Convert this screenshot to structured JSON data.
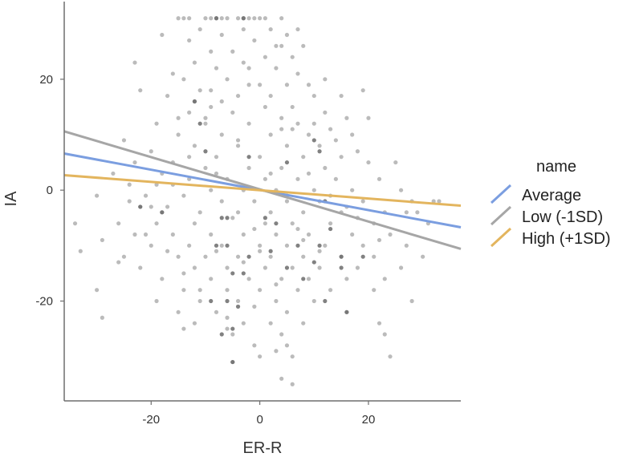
{
  "chart_data": {
    "type": "scatter",
    "title": "",
    "xlabel": "ER-R",
    "ylabel": "IA",
    "xlim": [
      -36,
      37
    ],
    "ylim": [
      -38,
      34
    ],
    "x_ticks": [
      -20,
      0,
      20
    ],
    "y_ticks": [
      -20,
      0,
      20
    ],
    "grid": false,
    "legend": {
      "title": "name",
      "position": "right",
      "entries": [
        {
          "label": "Average",
          "color": "#7b9ee0"
        },
        {
          "label": "Low (-1SD)",
          "color": "#a6a6a6"
        },
        {
          "label": "High (+1SD)",
          "color": "#e3b55e"
        }
      ]
    },
    "point_color": "#9e9e9e",
    "lines": [
      {
        "name": "Average",
        "color": "#7b9ee0",
        "x": [
          -36,
          37
        ],
        "y": [
          6.6,
          -6.7
        ]
      },
      {
        "name": "Low (-1SD)",
        "color": "#a6a6a6",
        "x": [
          -36,
          37
        ],
        "y": [
          10.6,
          -10.6
        ]
      },
      {
        "name": "High (+1SD)",
        "color": "#e3b55e",
        "x": [
          -36,
          37
        ],
        "y": [
          2.7,
          -2.8
        ]
      }
    ],
    "points": [
      [
        -15,
        31
      ],
      [
        -14,
        31
      ],
      [
        -13,
        31
      ],
      [
        -10,
        31
      ],
      [
        -9,
        31
      ],
      [
        -8,
        31
      ],
      [
        -7,
        31
      ],
      [
        -6,
        31
      ],
      [
        -4,
        31
      ],
      [
        -3,
        31
      ],
      [
        -2,
        31
      ],
      [
        -1,
        31
      ],
      [
        0,
        31
      ],
      [
        1,
        31
      ],
      [
        4,
        31
      ],
      [
        -18,
        28
      ],
      [
        -11,
        29
      ],
      [
        -7,
        28
      ],
      [
        -3,
        29
      ],
      [
        2,
        29
      ],
      [
        5,
        28
      ],
      [
        7,
        29
      ],
      [
        -13,
        27
      ],
      [
        -1,
        27
      ],
      [
        4,
        26
      ],
      [
        8,
        26
      ],
      [
        -9,
        25
      ],
      [
        -5,
        25
      ],
      [
        3,
        26
      ],
      [
        6,
        24
      ],
      [
        -12,
        23
      ],
      [
        -3,
        23
      ],
      [
        1,
        24
      ],
      [
        -23,
        23
      ],
      [
        -16,
        21
      ],
      [
        -8,
        22
      ],
      [
        -2,
        22
      ],
      [
        3,
        22
      ],
      [
        7,
        21
      ],
      [
        12,
        20
      ],
      [
        -14,
        20
      ],
      [
        -6,
        20
      ],
      [
        0,
        19
      ],
      [
        5,
        19
      ],
      [
        9,
        19
      ],
      [
        -22,
        18
      ],
      [
        -11,
        18
      ],
      [
        -4,
        17
      ],
      [
        2,
        17
      ],
      [
        10,
        17
      ],
      [
        15,
        17
      ],
      [
        19,
        18
      ],
      [
        -17,
        17
      ],
      [
        -9,
        15
      ],
      [
        1,
        15
      ],
      [
        6,
        15
      ],
      [
        -13,
        14
      ],
      [
        -5,
        14
      ],
      [
        4,
        13
      ],
      [
        12,
        14
      ],
      [
        16,
        13
      ],
      [
        20,
        13
      ],
      [
        -19,
        12
      ],
      [
        -10,
        12
      ],
      [
        -2,
        12
      ],
      [
        7,
        12
      ],
      [
        13,
        11
      ],
      [
        -15,
        10
      ],
      [
        -7,
        10
      ],
      [
        2,
        10
      ],
      [
        9,
        10
      ],
      [
        17,
        10
      ],
      [
        -25,
        9
      ],
      [
        -12,
        8
      ],
      [
        -4,
        8
      ],
      [
        5,
        8
      ],
      [
        11,
        8
      ],
      [
        18,
        7
      ],
      [
        -20,
        7
      ],
      [
        -8,
        6
      ],
      [
        0,
        6
      ],
      [
        8,
        6
      ],
      [
        15,
        6
      ],
      [
        -23,
        5
      ],
      [
        -16,
        5
      ],
      [
        -10,
        4
      ],
      [
        -2,
        4
      ],
      [
        4,
        4
      ],
      [
        12,
        4
      ],
      [
        20,
        5
      ],
      [
        25,
        5
      ],
      [
        -27,
        3
      ],
      [
        -18,
        3
      ],
      [
        -13,
        2
      ],
      [
        -6,
        2
      ],
      [
        1,
        2
      ],
      [
        7,
        2
      ],
      [
        14,
        2
      ],
      [
        22,
        2
      ],
      [
        -24,
        1
      ],
      [
        -19,
        1
      ],
      [
        -9,
        0
      ],
      [
        -3,
        0
      ],
      [
        3,
        0
      ],
      [
        10,
        0
      ],
      [
        17,
        0
      ],
      [
        26,
        0
      ],
      [
        -21,
        -1
      ],
      [
        -14,
        -1
      ],
      [
        -7,
        -2
      ],
      [
        -1,
        -2
      ],
      [
        5,
        -2
      ],
      [
        11,
        -2
      ],
      [
        19,
        -2
      ],
      [
        28,
        -2
      ],
      [
        33,
        -2
      ],
      [
        -30,
        -1
      ],
      [
        -22,
        -3
      ],
      [
        -17,
        -3
      ],
      [
        -11,
        -4
      ],
      [
        -4,
        -4
      ],
      [
        2,
        -4
      ],
      [
        8,
        -4
      ],
      [
        15,
        -4
      ],
      [
        23,
        -4
      ],
      [
        29,
        -4
      ],
      [
        -26,
        -6
      ],
      [
        -19,
        -6
      ],
      [
        -12,
        -6
      ],
      [
        -5,
        -5
      ],
      [
        1,
        -6
      ],
      [
        6,
        -6
      ],
      [
        13,
        -6
      ],
      [
        21,
        -6
      ],
      [
        31,
        -6
      ],
      [
        -34,
        -6
      ],
      [
        -23,
        -8
      ],
      [
        -16,
        -8
      ],
      [
        -9,
        -8
      ],
      [
        -3,
        -8
      ],
      [
        3,
        -8
      ],
      [
        9,
        -8
      ],
      [
        17,
        -8
      ],
      [
        24,
        -8
      ],
      [
        -29,
        -9
      ],
      [
        -20,
        -10
      ],
      [
        -13,
        -10
      ],
      [
        -7,
        -10
      ],
      [
        0,
        -10
      ],
      [
        5,
        -10
      ],
      [
        12,
        -10
      ],
      [
        19,
        -10
      ],
      [
        27,
        -10
      ],
      [
        -33,
        -11
      ],
      [
        -25,
        -12
      ],
      [
        -15,
        -12
      ],
      [
        -10,
        -12
      ],
      [
        -4,
        -12
      ],
      [
        2,
        -12
      ],
      [
        8,
        -12
      ],
      [
        15,
        -12
      ],
      [
        21,
        -12
      ],
      [
        30,
        -12
      ],
      [
        -22,
        -14
      ],
      [
        -12,
        -14
      ],
      [
        -6,
        -14
      ],
      [
        1,
        -14
      ],
      [
        6,
        -14
      ],
      [
        11,
        -14
      ],
      [
        18,
        -14
      ],
      [
        26,
        -14
      ],
      [
        -18,
        -16
      ],
      [
        -9,
        -16
      ],
      [
        -2,
        -16
      ],
      [
        4,
        -16
      ],
      [
        9,
        -16
      ],
      [
        16,
        -16
      ],
      [
        23,
        -16
      ],
      [
        -14,
        -18
      ],
      [
        -6,
        -18
      ],
      [
        0,
        -18
      ],
      [
        7,
        -18
      ],
      [
        13,
        -18
      ],
      [
        21,
        -18
      ],
      [
        -30,
        -18
      ],
      [
        -19,
        -20
      ],
      [
        -11,
        -20
      ],
      [
        -4,
        -20
      ],
      [
        3,
        -20
      ],
      [
        10,
        -20
      ],
      [
        28,
        -20
      ],
      [
        -15,
        -22
      ],
      [
        -8,
        -22
      ],
      [
        -1,
        -21
      ],
      [
        5,
        -22
      ],
      [
        16,
        -22
      ],
      [
        -29,
        -23
      ],
      [
        -12,
        -24
      ],
      [
        -3,
        -24
      ],
      [
        2,
        -24
      ],
      [
        8,
        -24
      ],
      [
        22,
        -24
      ],
      [
        -14,
        -25
      ],
      [
        -6,
        -25
      ],
      [
        -5,
        -26
      ],
      [
        4,
        -26
      ],
      [
        23,
        -26
      ],
      [
        -1,
        -28
      ],
      [
        5,
        -28
      ],
      [
        3,
        -29
      ],
      [
        0,
        -30
      ],
      [
        6,
        -30
      ],
      [
        24,
        -30
      ],
      [
        -5,
        -31
      ],
      [
        4,
        -34
      ],
      [
        6,
        -35
      ],
      [
        -18,
        -4
      ],
      [
        -20,
        -3
      ],
      [
        -21,
        -8
      ],
      [
        -17,
        -11
      ],
      [
        -24,
        -2
      ],
      [
        -13,
        6
      ],
      [
        -8,
        -11
      ],
      [
        -3,
        -13
      ],
      [
        9,
        3
      ],
      [
        13,
        -1
      ],
      [
        18,
        -5
      ],
      [
        22,
        -9
      ],
      [
        27,
        -4
      ],
      [
        32,
        -2
      ],
      [
        -26,
        -13
      ],
      [
        -10,
        13
      ],
      [
        -7,
        16
      ],
      [
        -2,
        19
      ],
      [
        4,
        11
      ],
      [
        10,
        12
      ],
      [
        14,
        9
      ],
      [
        -14,
        -15
      ],
      [
        -11,
        -18
      ],
      [
        -6,
        -23
      ],
      [
        0,
        -11
      ],
      [
        3,
        -17
      ],
      [
        7,
        -7
      ],
      [
        11,
        -11
      ],
      [
        -16,
        1
      ],
      [
        -1,
        -7
      ],
      [
        5,
        -1
      ],
      [
        8,
        -9
      ],
      [
        -4,
        9
      ],
      [
        2,
        3
      ],
      [
        6,
        11
      ],
      [
        -9,
        18
      ],
      [
        -12,
        16
      ],
      [
        -15,
        13
      ],
      [
        -8,
        3
      ],
      [
        16,
        -3
      ]
    ],
    "dark_points": [
      [
        -12,
        16
      ],
      [
        -8,
        31
      ],
      [
        -3,
        31
      ],
      [
        -11,
        12
      ],
      [
        -10,
        7
      ],
      [
        -2,
        6
      ],
      [
        5,
        5
      ],
      [
        10,
        9
      ],
      [
        11,
        7
      ],
      [
        -22,
        -3
      ],
      [
        -18,
        -4
      ],
      [
        -7,
        -5
      ],
      [
        -6,
        -5
      ],
      [
        1,
        -5
      ],
      [
        12,
        -2
      ],
      [
        -8,
        -10
      ],
      [
        -6,
        -10
      ],
      [
        2,
        -11
      ],
      [
        7,
        -10
      ],
      [
        11,
        -10
      ],
      [
        -5,
        -15
      ],
      [
        -3,
        -15
      ],
      [
        5,
        -14
      ],
      [
        10,
        -13
      ],
      [
        15,
        -14
      ],
      [
        8,
        -16
      ],
      [
        -6,
        -20
      ],
      [
        -4,
        -21
      ],
      [
        12,
        -20
      ],
      [
        16,
        -22
      ],
      [
        -9,
        -20
      ],
      [
        -5,
        -25
      ],
      [
        -7,
        -26
      ],
      [
        -5,
        -31
      ],
      [
        13,
        -7
      ],
      [
        19,
        -12
      ],
      [
        3,
        -6
      ],
      [
        -2,
        -12
      ],
      [
        15,
        -12
      ]
    ]
  }
}
